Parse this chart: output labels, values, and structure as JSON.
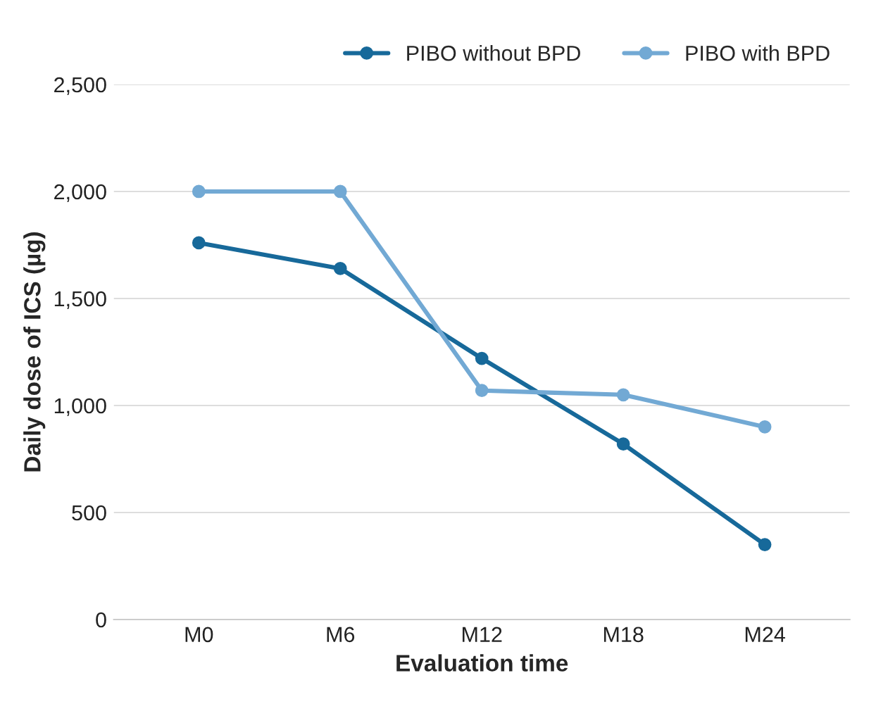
{
  "chart_data": {
    "type": "line",
    "xlabel": "Evaluation time",
    "ylabel": "Daily dose of ICS (µg)",
    "categories": [
      "M0",
      "M6",
      "M12",
      "M18",
      "M24"
    ],
    "series": [
      {
        "name": "PIBO without BPD",
        "color": "#17699a",
        "values": [
          1760,
          1640,
          1220,
          820,
          350
        ]
      },
      {
        "name": "PIBO with BPD",
        "color": "#72a9d4",
        "values": [
          2000,
          2000,
          1070,
          1050,
          900
        ]
      }
    ],
    "ylim": [
      0,
      2500
    ],
    "yticks": [
      {
        "value": 0,
        "label": "0"
      },
      {
        "value": 500,
        "label": "500"
      },
      {
        "value": 1000,
        "label": "1,000"
      },
      {
        "value": 1500,
        "label": "1,500"
      },
      {
        "value": 2000,
        "label": "2,000"
      },
      {
        "value": 2500,
        "label": "2,500"
      }
    ],
    "grid": "y",
    "legend": "top right",
    "marker": "circle",
    "line_style": "solid"
  }
}
